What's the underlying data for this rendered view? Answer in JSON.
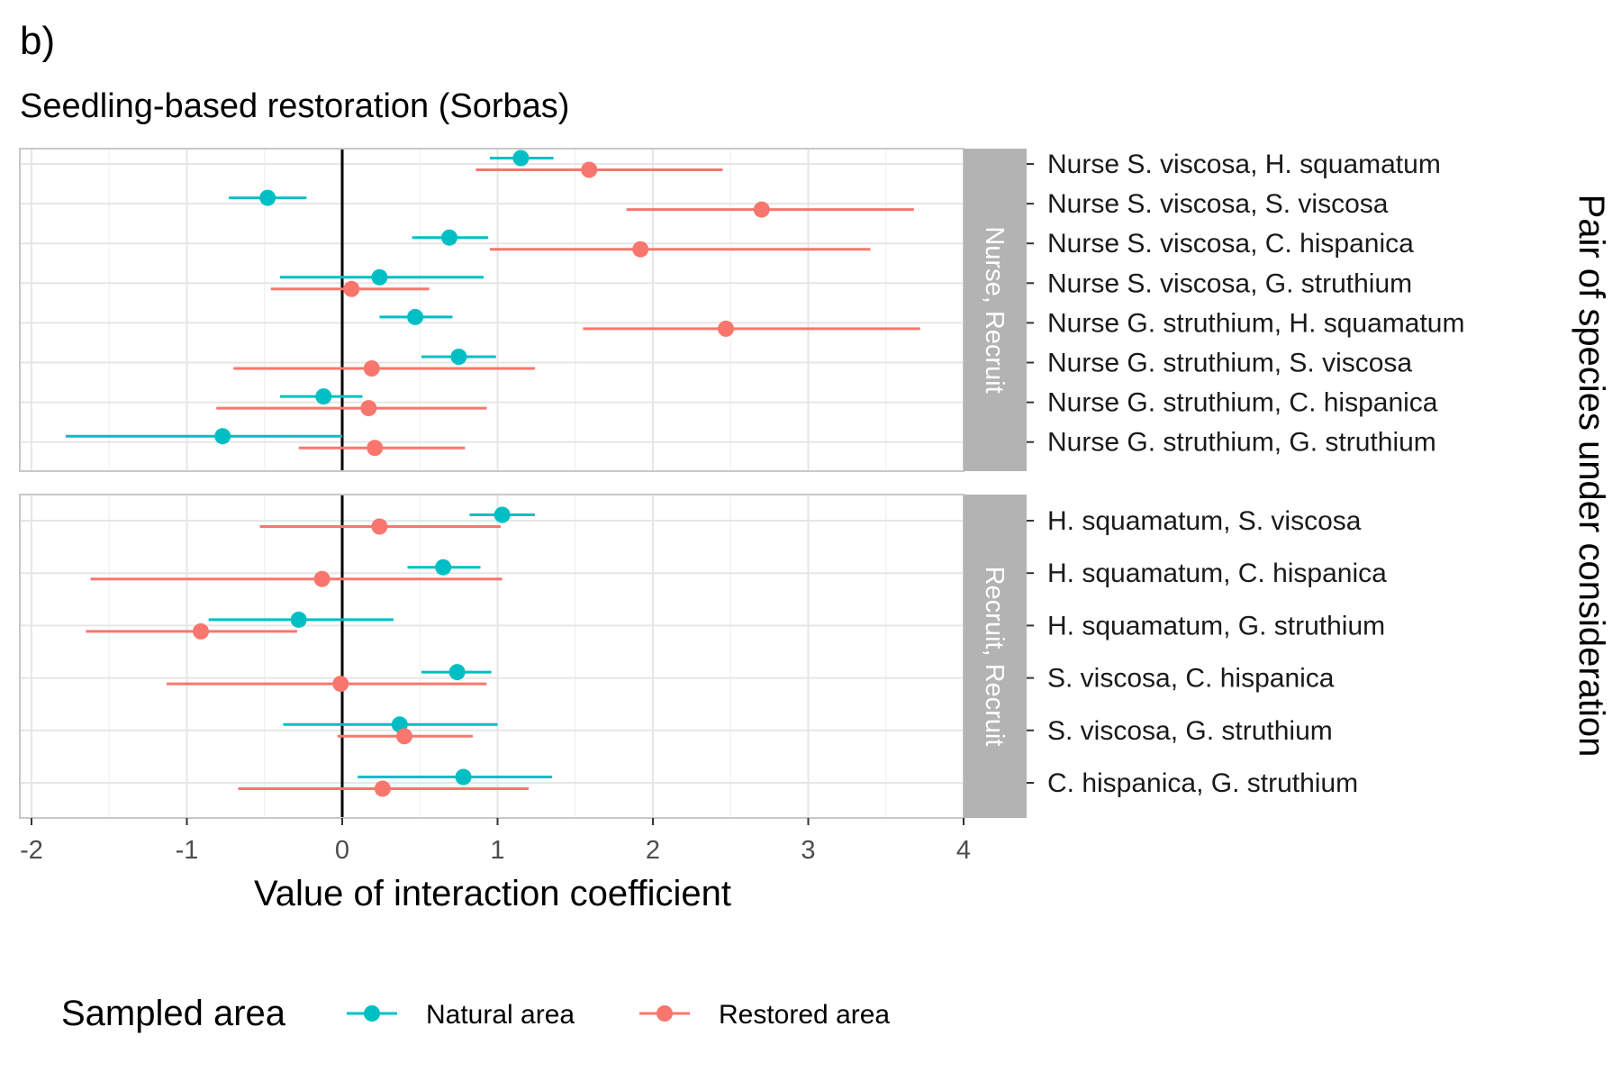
{
  "tag": "b)",
  "colors": {
    "natural": "#00BFC4",
    "restored": "#F8766D",
    "strip": "#B3B3B3",
    "zero_line": "#000000"
  },
  "chart_data": {
    "type": "forest",
    "title": "Seedling-based restoration (Sorbas)",
    "xlabel": "Value of interaction coefficient",
    "ylabel": "Pair of species under consideration",
    "xlim": [
      -2,
      4
    ],
    "xticks": [
      -2,
      -1,
      0,
      1,
      2,
      3,
      4
    ],
    "xtick_labels": [
      "-2",
      "-1",
      "0",
      "1",
      "2",
      "3",
      "4"
    ],
    "reference_line": 0,
    "grid": true,
    "legend": {
      "title": "Sampled area",
      "position": "bottom",
      "entries": [
        {
          "key": "natural",
          "label": "Natural area"
        },
        {
          "key": "restored",
          "label": "Restored area"
        }
      ]
    },
    "panels": [
      {
        "strip": "Nurse, Recruit",
        "rows": [
          {
            "label": "Nurse S. viscosa, H. squamatum",
            "natural": {
              "est": 1.15,
              "lo": 0.95,
              "hi": 1.36
            },
            "restored": {
              "est": 1.59,
              "lo": 0.86,
              "hi": 2.45
            }
          },
          {
            "label": "Nurse S. viscosa, S. viscosa",
            "natural": {
              "est": -0.48,
              "lo": -0.73,
              "hi": -0.23
            },
            "restored": {
              "est": 2.7,
              "lo": 1.83,
              "hi": 3.68
            }
          },
          {
            "label": "Nurse S. viscosa, C. hispanica",
            "natural": {
              "est": 0.69,
              "lo": 0.45,
              "hi": 0.94
            },
            "restored": {
              "est": 1.92,
              "lo": 0.95,
              "hi": 3.4
            }
          },
          {
            "label": "Nurse S. viscosa, G. struthium",
            "natural": {
              "est": 0.24,
              "lo": -0.4,
              "hi": 0.91
            },
            "restored": {
              "est": 0.06,
              "lo": -0.46,
              "hi": 0.56
            }
          },
          {
            "label": "Nurse G. struthium, H. squamatum",
            "natural": {
              "est": 0.47,
              "lo": 0.24,
              "hi": 0.71
            },
            "restored": {
              "est": 2.47,
              "lo": 1.55,
              "hi": 3.72
            }
          },
          {
            "label": "Nurse G. struthium, S. viscosa",
            "natural": {
              "est": 0.75,
              "lo": 0.51,
              "hi": 0.99
            },
            "restored": {
              "est": 0.19,
              "lo": -0.7,
              "hi": 1.24
            }
          },
          {
            "label": "Nurse G. struthium, C. hispanica",
            "natural": {
              "est": -0.12,
              "lo": -0.4,
              "hi": 0.13
            },
            "restored": {
              "est": 0.17,
              "lo": -0.81,
              "hi": 0.93
            }
          },
          {
            "label": "Nurse G. struthium, G. struthium",
            "natural": {
              "est": -0.77,
              "lo": -1.78,
              "hi": 0.0
            },
            "restored": {
              "est": 0.21,
              "lo": -0.28,
              "hi": 0.79
            }
          }
        ]
      },
      {
        "strip": "Recruit, Recruit",
        "rows": [
          {
            "label": "H. squamatum, S. viscosa",
            "natural": {
              "est": 1.03,
              "lo": 0.82,
              "hi": 1.24
            },
            "restored": {
              "est": 0.24,
              "lo": -0.53,
              "hi": 1.02
            }
          },
          {
            "label": "H. squamatum, C. hispanica",
            "natural": {
              "est": 0.65,
              "lo": 0.42,
              "hi": 0.89
            },
            "restored": {
              "est": -0.13,
              "lo": -1.62,
              "hi": 1.03
            }
          },
          {
            "label": "H. squamatum, G. struthium",
            "natural": {
              "est": -0.28,
              "lo": -0.86,
              "hi": 0.33
            },
            "restored": {
              "est": -0.91,
              "lo": -1.65,
              "hi": -0.29
            }
          },
          {
            "label": "S. viscosa, C. hispanica",
            "natural": {
              "est": 0.74,
              "lo": 0.51,
              "hi": 0.96
            },
            "restored": {
              "est": -0.01,
              "lo": -1.13,
              "hi": 0.93
            }
          },
          {
            "label": "S. viscosa, G. struthium",
            "natural": {
              "est": 0.37,
              "lo": -0.38,
              "hi": 1.0
            },
            "restored": {
              "est": 0.4,
              "lo": -0.03,
              "hi": 0.84
            }
          },
          {
            "label": "C. hispanica, G. struthium",
            "natural": {
              "est": 0.78,
              "lo": 0.1,
              "hi": 1.35
            },
            "restored": {
              "est": 0.26,
              "lo": -0.67,
              "hi": 1.2
            }
          }
        ]
      }
    ]
  }
}
